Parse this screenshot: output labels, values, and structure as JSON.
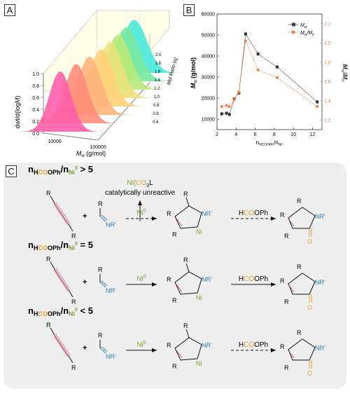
{
  "panels": {
    "a": "A",
    "b": "B",
    "c": "C"
  },
  "colors": {
    "red": "#c9546a",
    "green": "#7aa23a",
    "blue": "#2c7fb8",
    "gold": "#e3a12b",
    "orange": "#f47d3a",
    "gray_bg": "#eeeeee"
  },
  "chart_data": [
    {
      "type": "area",
      "panel": "A",
      "ylabel": "dwt/d(logM)",
      "xlabel": "M_w (g/mol)",
      "zlabel": "Mol Ratio (q)",
      "y_ticks": [
        "0.0",
        "0.2",
        "0.4",
        "0.6",
        "0.8",
        "1.0"
      ],
      "x_ticks": [
        "10000",
        "100000"
      ],
      "z_ticks": [
        "0.4",
        "0.6",
        "0.8",
        "1.0",
        "1.2",
        "1.4",
        "1.6",
        "1.8",
        "2.0"
      ],
      "series": [
        {
          "color": "#ff5ea8",
          "peak_mw": 11000
        },
        {
          "color": "#ff8c7a",
          "peak_mw": 20000
        },
        {
          "color": "#ffb27a",
          "peak_mw": 30000
        },
        {
          "color": "#ffd27a",
          "peak_mw": 40000
        },
        {
          "color": "#e8e27a",
          "peak_mw": 45000
        },
        {
          "color": "#b8ea7a",
          "peak_mw": 48000
        },
        {
          "color": "#7ae8a0",
          "peak_mw": 50000
        },
        {
          "color": "#4ae8d8",
          "peak_mw": 52000
        }
      ]
    },
    {
      "type": "line",
      "panel": "B",
      "xlabel": "n_HCOOPh / n_Ni0",
      "ylabel": "M_w (g/mol)",
      "y2label": "M_w/M_n",
      "x": [
        2.5,
        3,
        3.3,
        3.8,
        4.3,
        5,
        6.3,
        8.3,
        12.5
      ],
      "xlim": [
        2,
        13
      ],
      "ylim": [
        5000,
        60000
      ],
      "y2lim": [
        1.1,
        2.3
      ],
      "x_ticks": [
        "2",
        "4",
        "6",
        "8",
        "10",
        "12"
      ],
      "y_ticks": [
        "10000",
        "20000",
        "30000",
        "40000",
        "50000",
        "60000"
      ],
      "y2_ticks": [
        "1.2",
        "1.4",
        "1.6",
        "1.8",
        "2.0",
        "2.2"
      ],
      "series": [
        {
          "name": "M_w",
          "axis": "left",
          "color": "#444444",
          "values": [
            12500,
            12800,
            12200,
            19500,
            22500,
            50500,
            41000,
            34800,
            18200
          ]
        },
        {
          "name": "M_w/M_n",
          "axis": "right",
          "color": "#f47d3a",
          "values": [
            1.34,
            1.35,
            1.34,
            1.41,
            1.49,
            2.02,
            1.72,
            1.64,
            1.34
          ]
        }
      ]
    }
  ],
  "scheme": {
    "rows": [
      {
        "cond_pre": "n",
        "cond_h": "HCOOPh",
        "cond_mid": "/n",
        "cond_ni": "Ni",
        "cond_sup": "0",
        "cond_rel": " > 5",
        "side_product": "Ni(CO)3L",
        "side_note": "catalytically unreactive",
        "arrow1": "Ni",
        "arrow1_sup": "0",
        "arrow2": "HCOOPh",
        "dashed1": true,
        "dashed2": true
      },
      {
        "cond_pre": "n",
        "cond_h": "HCOOPh",
        "cond_mid": "/n",
        "cond_ni": "Ni",
        "cond_sup": "0",
        "cond_rel": " = 5",
        "arrow1": "Ni",
        "arrow1_sup": "0",
        "arrow2": "HCOOPh",
        "dashed1": false,
        "dashed2": false
      },
      {
        "cond_pre": "n",
        "cond_h": "HCOOPh",
        "cond_mid": "/n",
        "cond_ni": "Ni",
        "cond_sup": "0",
        "cond_rel": " < 5",
        "arrow1": "Ni",
        "arrow1_sup": "0",
        "arrow2": "HCOOPh",
        "dashed1": false,
        "dashed2": true
      }
    ],
    "labels": {
      "R": "R",
      "NR": "NR'",
      "N": "N",
      "Ni": "Ni",
      "O": "O",
      "plus": "+"
    }
  }
}
